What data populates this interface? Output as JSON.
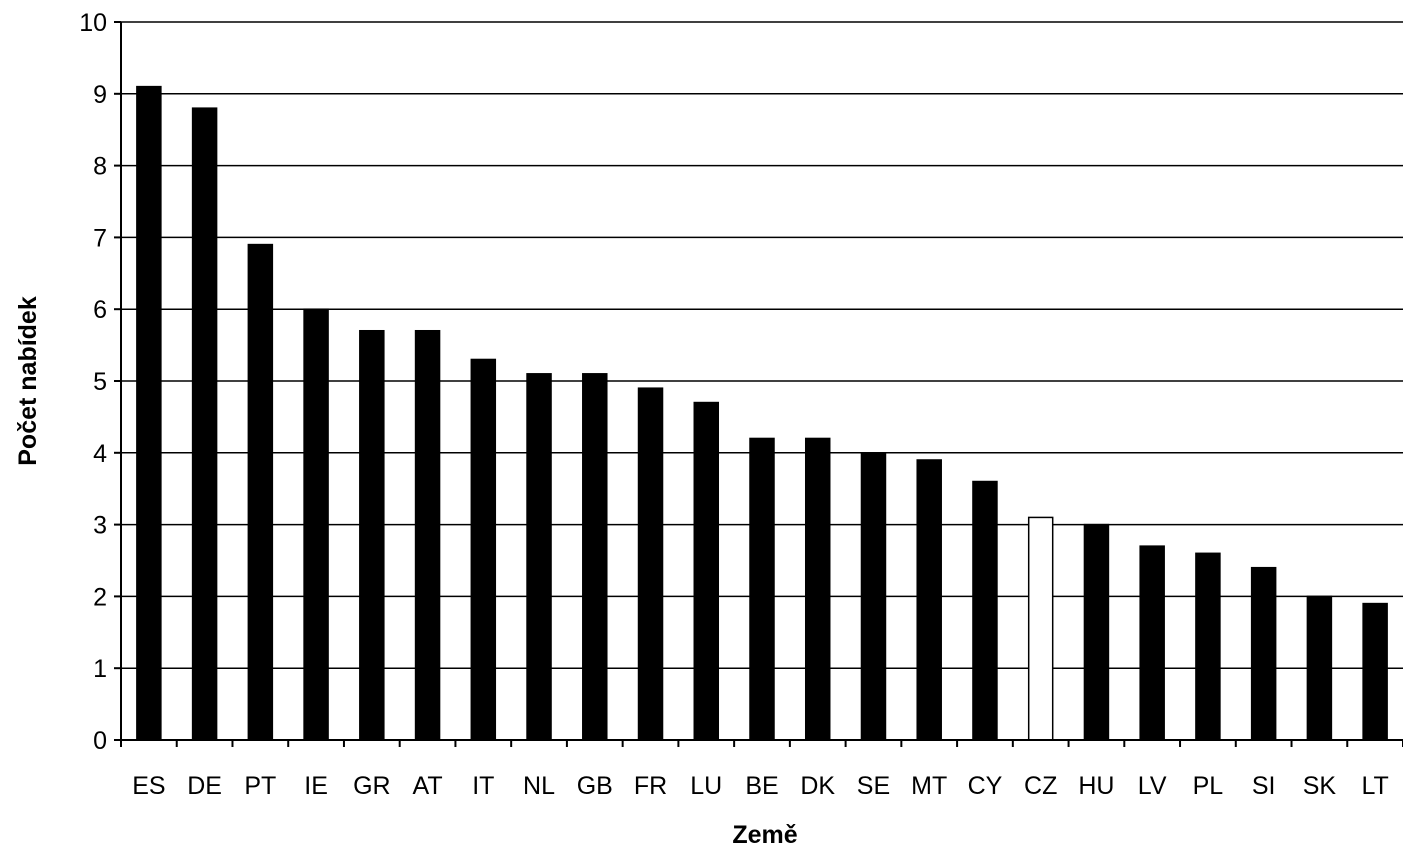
{
  "chart_data": {
    "type": "bar",
    "title": "",
    "xlabel": "Země",
    "ylabel": "Počet nabídek",
    "ylim": [
      0,
      10
    ],
    "yticks": [
      0,
      1,
      2,
      3,
      4,
      5,
      6,
      7,
      8,
      9,
      10
    ],
    "grid": true,
    "legend": "none",
    "categories": [
      "ES",
      "DE",
      "PT",
      "IE",
      "GR",
      "AT",
      "IT",
      "NL",
      "GB",
      "FR",
      "LU",
      "BE",
      "DK",
      "SE",
      "MT",
      "CY",
      "CZ",
      "HU",
      "LV",
      "PL",
      "SI",
      "SK",
      "LT"
    ],
    "values": [
      9.1,
      8.8,
      6.9,
      6.0,
      5.7,
      5.7,
      5.3,
      5.1,
      5.1,
      4.9,
      4.7,
      4.2,
      4.2,
      4.0,
      3.9,
      3.6,
      3.1,
      3.0,
      2.7,
      2.6,
      2.4,
      2.0,
      1.9
    ],
    "highlighted_category": "CZ",
    "colors": {
      "bar_fill": "#000000",
      "highlight_fill": "#ffffff",
      "bar_stroke": "#000000",
      "grid": "#000000",
      "axis": "#000000"
    }
  }
}
